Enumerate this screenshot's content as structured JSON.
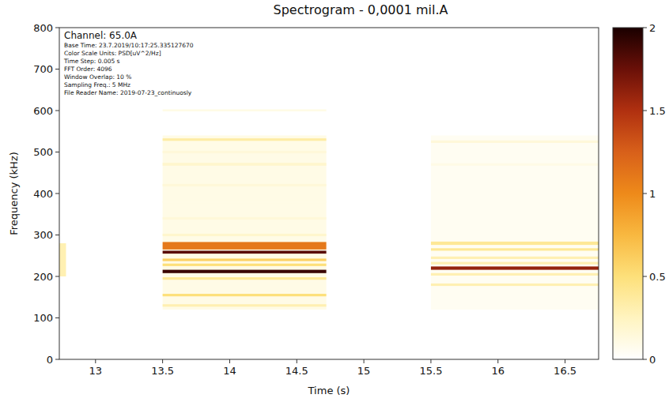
{
  "chart_data": {
    "type": "heatmap",
    "title": "Spectrogram - 0,0001 mil.A",
    "x_label": "Time (s)",
    "y_label": "Frequency (kHz)",
    "annotations": [
      "Channel: 65.0A",
      "Base Time: 23.7.2019/10:17:25.335127670",
      "Color Scale Units: PSD[uV^2/Hz]",
      "Time Step: 0.005 s",
      "FFT Order: 4096",
      "Window Overlap: 10 %",
      "Sampling Freq.: 5 MHz",
      "File Reader Name: 2019-07-23_continuosly"
    ],
    "xlim": [
      12.73,
      16.75
    ],
    "xticks": [
      13,
      13.5,
      14,
      14.5,
      15,
      15.5,
      16,
      16.5
    ],
    "ylim": [
      0,
      800
    ],
    "yticks": [
      0,
      100,
      200,
      300,
      400,
      500,
      600,
      700,
      800
    ],
    "colorbar": {
      "range": [
        0,
        2
      ],
      "ticks": [
        0,
        0.5,
        1,
        1.5,
        2
      ]
    },
    "cells": [
      {
        "t": [
          13.5,
          14.72
        ],
        "f": [
          120,
          540
        ],
        "value": 0.1
      },
      {
        "t": [
          15.5,
          16.75
        ],
        "f": [
          120,
          540
        ],
        "value": 0.05
      },
      {
        "t": [
          12.73,
          12.78
        ],
        "f": [
          200,
          280
        ],
        "value": 0.3
      },
      {
        "t": [
          13.5,
          14.72
        ],
        "f": [
          598,
          603
        ],
        "value": 0.1
      },
      {
        "t": [
          13.5,
          14.72
        ],
        "f": [
          527,
          533
        ],
        "value": 0.35
      },
      {
        "t": [
          13.5,
          14.72
        ],
        "f": [
          497,
          503
        ],
        "value": 0.15
      },
      {
        "t": [
          13.5,
          14.72
        ],
        "f": [
          467,
          474
        ],
        "value": 0.2
      },
      {
        "t": [
          13.5,
          14.72
        ],
        "f": [
          417,
          423
        ],
        "value": 0.15
      },
      {
        "t": [
          13.5,
          14.72
        ],
        "f": [
          377,
          383
        ],
        "value": 0.1
      },
      {
        "t": [
          13.5,
          14.72
        ],
        "f": [
          337,
          343
        ],
        "value": 0.15
      },
      {
        "t": [
          13.5,
          14.72
        ],
        "f": [
          297,
          303
        ],
        "value": 0.2
      },
      {
        "t": [
          13.5,
          14.72
        ],
        "f": [
          265,
          283
        ],
        "value": 1.1
      },
      {
        "t": [
          13.5,
          14.72
        ],
        "f": [
          255,
          262
        ],
        "value": 1.8
      },
      {
        "t": [
          13.5,
          14.72
        ],
        "f": [
          237,
          243
        ],
        "value": 0.6
      },
      {
        "t": [
          13.5,
          14.72
        ],
        "f": [
          225,
          231
        ],
        "value": 0.5
      },
      {
        "t": [
          13.5,
          14.72
        ],
        "f": [
          208,
          216
        ],
        "value": 1.9
      },
      {
        "t": [
          13.5,
          14.72
        ],
        "f": [
          192,
          198
        ],
        "value": 0.4
      },
      {
        "t": [
          13.5,
          14.72
        ],
        "f": [
          152,
          158
        ],
        "value": 0.5
      },
      {
        "t": [
          13.5,
          14.72
        ],
        "f": [
          127,
          133
        ],
        "value": 0.3
      },
      {
        "t": [
          15.5,
          16.75
        ],
        "f": [
          522,
          528
        ],
        "value": 0.15
      },
      {
        "t": [
          15.5,
          16.75
        ],
        "f": [
          467,
          473
        ],
        "value": 0.1
      },
      {
        "t": [
          15.5,
          16.75
        ],
        "f": [
          276,
          284
        ],
        "value": 0.4
      },
      {
        "t": [
          15.5,
          16.75
        ],
        "f": [
          262,
          268
        ],
        "value": 0.4
      },
      {
        "t": [
          15.5,
          16.75
        ],
        "f": [
          242,
          248
        ],
        "value": 0.3
      },
      {
        "t": [
          15.5,
          16.75
        ],
        "f": [
          229,
          235
        ],
        "value": 0.3
      },
      {
        "t": [
          15.5,
          16.75
        ],
        "f": [
          216,
          224
        ],
        "value": 1.6
      },
      {
        "t": [
          15.5,
          16.75
        ],
        "f": [
          202,
          208
        ],
        "value": 0.3
      },
      {
        "t": [
          15.5,
          16.75
        ],
        "f": [
          177,
          183
        ],
        "value": 0.3
      }
    ]
  }
}
